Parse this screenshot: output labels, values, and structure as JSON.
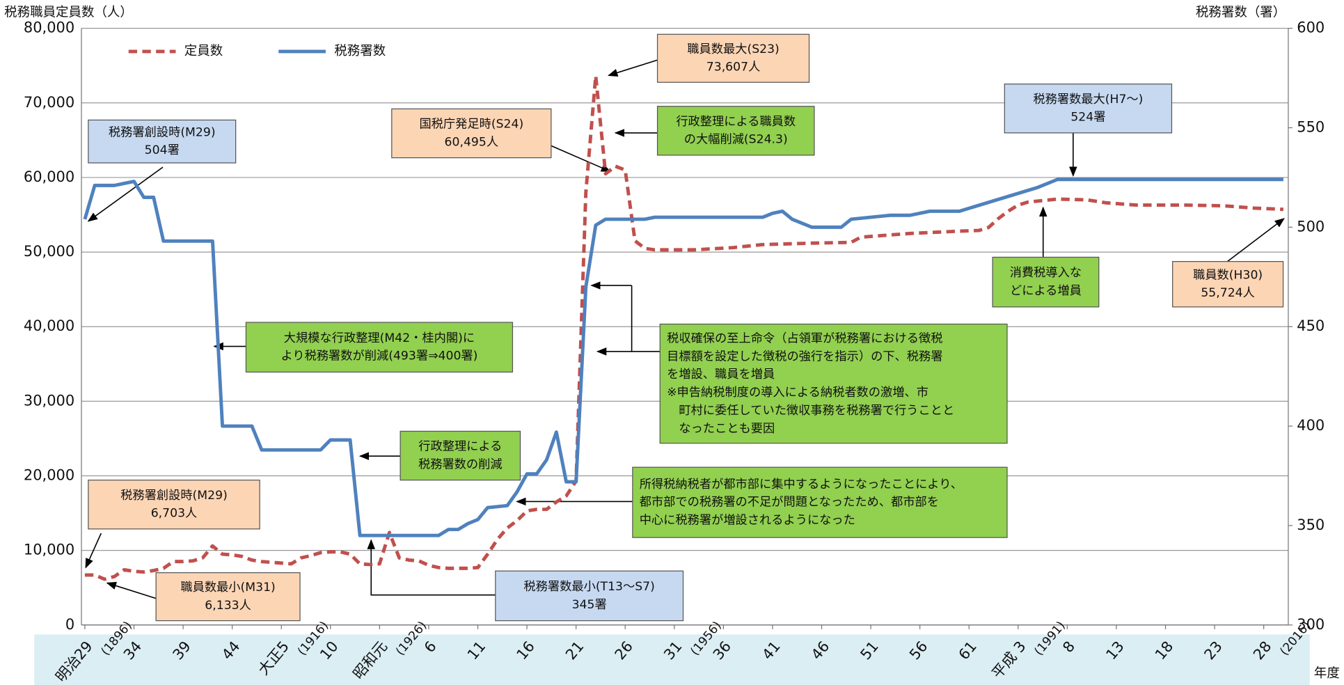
{
  "chart_data": {
    "type": "line",
    "y_label": "税務職員定員数（人）",
    "y2_label": "税務署数（署）",
    "x_label": "年度",
    "xlim": [
      1895.65,
      2018.5
    ],
    "xticks": [
      {
        "value": 1896,
        "label": "明治29\n(1896)"
      },
      {
        "value": 1901,
        "label": "34"
      },
      {
        "value": 1906,
        "label": "39"
      },
      {
        "value": 1911,
        "label": "44"
      },
      {
        "value": 1916,
        "label": "大正5\n(1916)"
      },
      {
        "value": 1921,
        "label": "10"
      },
      {
        "value": 1926,
        "label": "昭和元\n(1926)"
      },
      {
        "value": 1931,
        "label": "6"
      },
      {
        "value": 1936,
        "label": "11"
      },
      {
        "value": 1941,
        "label": "16"
      },
      {
        "value": 1946,
        "label": "21"
      },
      {
        "value": 1951,
        "label": "26"
      },
      {
        "value": 1956,
        "label": "31\n(1956)"
      },
      {
        "value": 1961,
        "label": "36"
      },
      {
        "value": 1966,
        "label": "41"
      },
      {
        "value": 1971,
        "label": "46"
      },
      {
        "value": 1976,
        "label": "51"
      },
      {
        "value": 1981,
        "label": "56"
      },
      {
        "value": 1986,
        "label": "61"
      },
      {
        "value": 1991,
        "label": "平成 3\n(1991)"
      },
      {
        "value": 1996,
        "label": "8"
      },
      {
        "value": 2001,
        "label": "13"
      },
      {
        "value": 2006,
        "label": "18"
      },
      {
        "value": 2011,
        "label": "23"
      },
      {
        "value": 2016,
        "label": "28\n(2016)"
      }
    ],
    "ylim": [
      0,
      80000
    ],
    "yticks": [
      0,
      {
        "value": 10000,
        "label": "10,000"
      },
      {
        "value": 20000,
        "label": "20,000"
      },
      {
        "value": 30000,
        "label": "30,000"
      },
      {
        "value": 40000,
        "label": "40,000"
      },
      {
        "value": 50000,
        "label": "50,000"
      },
      {
        "value": 60000,
        "label": "60,000"
      },
      {
        "value": 70000,
        "label": "70,000"
      },
      {
        "value": 80000,
        "label": "80,000"
      }
    ],
    "y2lim": [
      300,
      600
    ],
    "y2ticks": [
      300,
      350,
      400,
      450,
      500,
      550,
      600
    ],
    "grid": true,
    "series": [
      {
        "name": "定員数",
        "color": "#c0504d",
        "dashed": true,
        "x": [
          1896,
          1897,
          1898,
          1899,
          1900,
          1901,
          1902,
          1903,
          1904,
          1905,
          1906,
          1907,
          1908,
          1909,
          1910,
          1911,
          1912,
          1913,
          1914,
          1915,
          1916,
          1917,
          1918,
          1919,
          1920,
          1921,
          1922,
          1923,
          1924,
          1925,
          1926,
          1927,
          1928,
          1929,
          1930,
          1931,
          1932,
          1933,
          1934,
          1935,
          1936,
          1937,
          1938,
          1939,
          1940,
          1941,
          1942,
          1943,
          1944,
          1945,
          1946,
          1947,
          1948,
          1949,
          1950,
          1951,
          1952,
          1953,
          1954,
          1958,
          1962,
          1965,
          1970,
          1974,
          1975,
          1980,
          1985,
          1987,
          1988,
          1989,
          1990,
          1991,
          1992,
          1995,
          1998,
          2000,
          2003,
          2008,
          2012,
          2015,
          2018
        ],
        "values": [
          6703,
          6700,
          6133,
          6500,
          7400,
          7200,
          7100,
          7300,
          7600,
          8500,
          8500,
          8600,
          9000,
          10600,
          9500,
          9400,
          9200,
          8700,
          8500,
          8400,
          8300,
          8200,
          9000,
          9300,
          9700,
          9800,
          9800,
          9500,
          8200,
          8100,
          8200,
          12400,
          9000,
          8700,
          8600,
          8000,
          7700,
          7600,
          7600,
          7600,
          7700,
          9500,
          11500,
          13000,
          14000,
          15300,
          15500,
          15500,
          16500,
          17300,
          19300,
          58000,
          73607,
          60495,
          61500,
          61000,
          51500,
          50500,
          50300,
          50300,
          50600,
          51000,
          51200,
          51300,
          52000,
          52500,
          52800,
          52900,
          53300,
          54500,
          55500,
          56300,
          56700,
          57100,
          57000,
          56600,
          56300,
          56300,
          56200,
          55900,
          55724
        ]
      },
      {
        "name": "税務署数",
        "color": "#4f81bd",
        "axis": "y2",
        "x": [
          1896,
          1897,
          1899,
          1901,
          1902,
          1903,
          1904,
          1909,
          1910,
          1913,
          1914,
          1920,
          1921,
          1923,
          1924,
          1932,
          1933,
          1934,
          1935,
          1936,
          1937,
          1939,
          1940,
          1941,
          1942,
          1943,
          1944,
          1945,
          1946,
          1947,
          1948,
          1949,
          1953,
          1954,
          1965,
          1966,
          1967,
          1968,
          1969,
          1970,
          1973,
          1974,
          1976,
          1978,
          1980,
          1982,
          1985,
          1993,
          1995,
          2018
        ],
        "values": [
          504,
          521,
          521,
          523,
          515,
          515,
          493,
          493,
          400,
          400,
          388,
          388,
          393,
          393,
          345,
          345,
          348,
          348,
          351,
          353,
          359,
          360,
          367,
          376,
          376,
          383,
          397,
          372,
          372,
          470,
          501,
          504,
          504,
          505,
          505,
          507,
          508,
          504,
          502,
          500,
          500,
          504,
          505,
          506,
          506,
          508,
          508,
          520,
          524,
          524
        ]
      }
    ],
    "annotations": [
      {
        "lines": [
          "税務署創設時(M29)",
          "504署"
        ],
        "color": "#c6d9f1"
      },
      {
        "lines": [
          "税務署創設時(M29)",
          "6,703人"
        ],
        "color": "#fcd5b5"
      },
      {
        "lines": [
          "職員数最小(M31)",
          "6,133人"
        ],
        "color": "#fcd5b5"
      },
      {
        "lines": [
          "大規模な行政整理(M42・桂内閣)に",
          "より税務署数が削減(493署⇒400署)"
        ],
        "color": "#92d050"
      },
      {
        "lines": [
          "行政整理による",
          "税務署数の削減"
        ],
        "color": "#92d050"
      },
      {
        "lines": [
          "税務署数最小(T13～S7)",
          "345署"
        ],
        "color": "#c6d9f1"
      },
      {
        "lines": [
          "職員数最大(S23)",
          "73,607人"
        ],
        "color": "#fcd5b5"
      },
      {
        "lines": [
          "国税庁発足時(S24)",
          "60,495人"
        ],
        "color": "#fcd5b5"
      },
      {
        "lines": [
          "行政整理による職員数",
          "の大幅削減(S24.3)"
        ],
        "color": "#92d050"
      },
      {
        "lines": [
          "税収確保の至上命令（占領軍が税務署における徴税",
          "目標額を設定した徴税の強行を指示）の下、税務署",
          "を増設、職員を増員",
          "※申告納税制度の導入による納税者数の激増、市",
          "　町村に委任していた徴収事務を税務署で行うことと",
          "　なったことも要因"
        ],
        "color": "#92d050"
      },
      {
        "lines": [
          "所得税納税者が都市部に集中するようになったことにより、",
          "都市部での税務署の不足が問題となったため、都市部を",
          "中心に税務署が増設されるようになった"
        ],
        "color": "#92d050"
      },
      {
        "lines": [
          "税務署数最大(H7～)",
          "524署"
        ],
        "color": "#c6d9f1"
      },
      {
        "lines": [
          "消費税導入な",
          "どによる増員"
        ],
        "color": "#92d050"
      },
      {
        "lines": [
          "職員数(H30)",
          "55,724人"
        ],
        "color": "#fcd5b5"
      }
    ]
  }
}
